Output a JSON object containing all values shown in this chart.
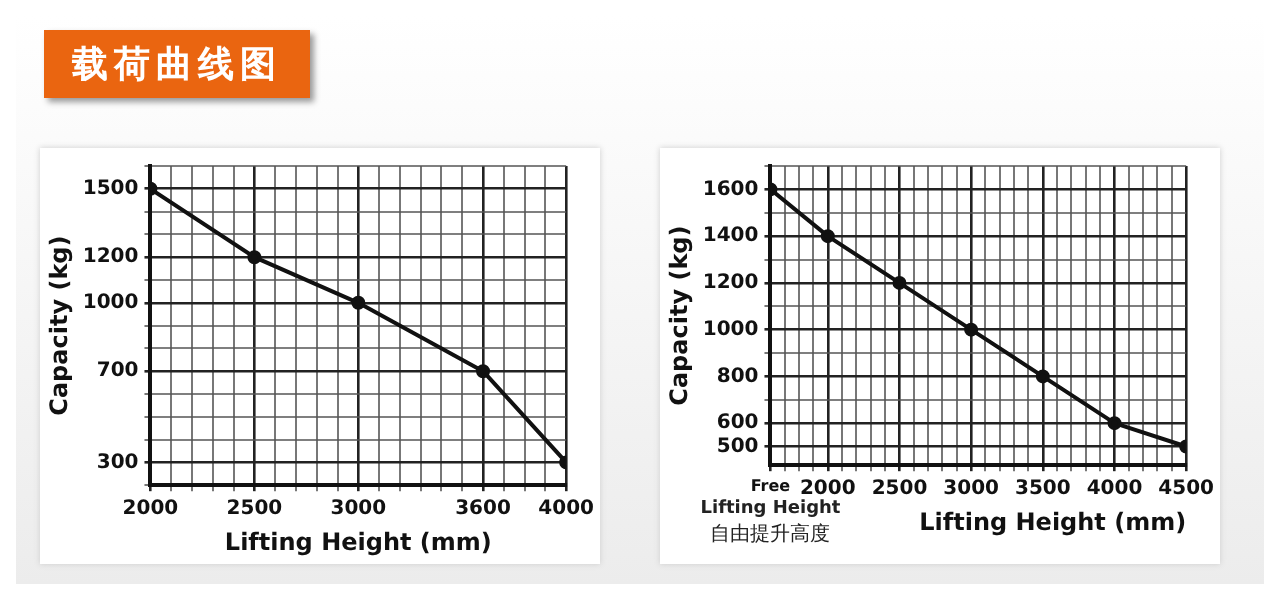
{
  "chart_data": [
    {
      "type": "line",
      "title": "载荷曲线图",
      "xlabel": "Lifting Height (mm)",
      "ylabel": "Capacity (kg)",
      "x": [
        2000,
        2500,
        3000,
        3600,
        4000
      ],
      "series": [
        {
          "color": "#111111",
          "values": [
            1500,
            1200,
            1000,
            700,
            300
          ]
        }
      ],
      "xlim": [
        2000,
        4000
      ],
      "ylim": [
        200,
        1600
      ],
      "xticks": [
        2000,
        {
          "value": 2100,
          "label": null
        },
        {
          "value": 2200,
          "label": null
        },
        {
          "value": 2300,
          "label": null
        },
        {
          "value": 2400,
          "label": null
        },
        2500,
        {
          "value": 2600,
          "label": null
        },
        {
          "value": 2700,
          "label": null
        },
        {
          "value": 2800,
          "label": null
        },
        {
          "value": 2900,
          "label": null
        },
        3000,
        {
          "value": 3100,
          "label": null
        },
        {
          "value": 3200,
          "label": null
        },
        {
          "value": 3300,
          "label": null
        },
        {
          "value": 3400,
          "label": null
        },
        {
          "value": 3500,
          "label": null
        },
        3600,
        {
          "value": 3700,
          "label": null
        },
        {
          "value": 3800,
          "label": null
        },
        {
          "value": 3900,
          "label": null
        },
        4000
      ],
      "yticks": [
        {
          "value": 200,
          "label": null
        },
        300,
        {
          "value": 400,
          "label": null
        },
        {
          "value": 500,
          "label": null
        },
        {
          "value": 600,
          "label": null
        },
        700,
        {
          "value": 800,
          "label": null
        },
        {
          "value": 900,
          "label": null
        },
        1000,
        {
          "value": 1100,
          "label": null
        },
        1200,
        {
          "value": 1300,
          "label": null
        },
        {
          "value": 1400,
          "label": null
        },
        1500,
        {
          "value": 1600,
          "label": null
        }
      ],
      "grid": true,
      "marker": "circle",
      "legend": false
    },
    {
      "type": "line",
      "xlabel": "Lifting Height (mm)",
      "ylabel": "Capacity (kg)",
      "x": [
        1600,
        2000,
        2500,
        3000,
        3500,
        4000,
        4500
      ],
      "series": [
        {
          "color": "#111111",
          "values": [
            1600,
            1400,
            1200,
            1000,
            800,
            600,
            500
          ]
        }
      ],
      "xlim": [
        1600,
        4500
      ],
      "ylim": [
        420,
        1700
      ],
      "xticks": [
        {
          "value": 1600,
          "label": "Free"
        },
        {
          "value": 1700,
          "label": null
        },
        {
          "value": 1800,
          "label": null
        },
        {
          "value": 1900,
          "label": null
        },
        2000,
        {
          "value": 2100,
          "label": null
        },
        {
          "value": 2200,
          "label": null
        },
        {
          "value": 2300,
          "label": null
        },
        {
          "value": 2400,
          "label": null
        },
        2500,
        {
          "value": 2600,
          "label": null
        },
        {
          "value": 2700,
          "label": null
        },
        {
          "value": 2800,
          "label": null
        },
        {
          "value": 2900,
          "label": null
        },
        3000,
        {
          "value": 3100,
          "label": null
        },
        {
          "value": 3200,
          "label": null
        },
        {
          "value": 3300,
          "label": null
        },
        {
          "value": 3400,
          "label": null
        },
        3500,
        {
          "value": 3600,
          "label": null
        },
        {
          "value": 3700,
          "label": null
        },
        {
          "value": 3800,
          "label": null
        },
        {
          "value": 3900,
          "label": null
        },
        4000,
        {
          "value": 4100,
          "label": null
        },
        {
          "value": 4200,
          "label": null
        },
        {
          "value": 4300,
          "label": null
        },
        {
          "value": 4400,
          "label": null
        },
        4500
      ],
      "yticks": [
        500,
        600,
        {
          "value": 700,
          "label": null
        },
        800,
        {
          "value": 900,
          "label": null
        },
        1000,
        {
          "value": 1100,
          "label": null
        },
        1200,
        {
          "value": 1300,
          "label": null
        },
        1400,
        {
          "value": 1500,
          "label": null
        },
        1600,
        {
          "value": 1700,
          "label": null
        }
      ],
      "grid": true,
      "marker": "circle",
      "legend": false,
      "annotations": [
        "Lifting Height",
        "自由提升高度"
      ]
    }
  ]
}
